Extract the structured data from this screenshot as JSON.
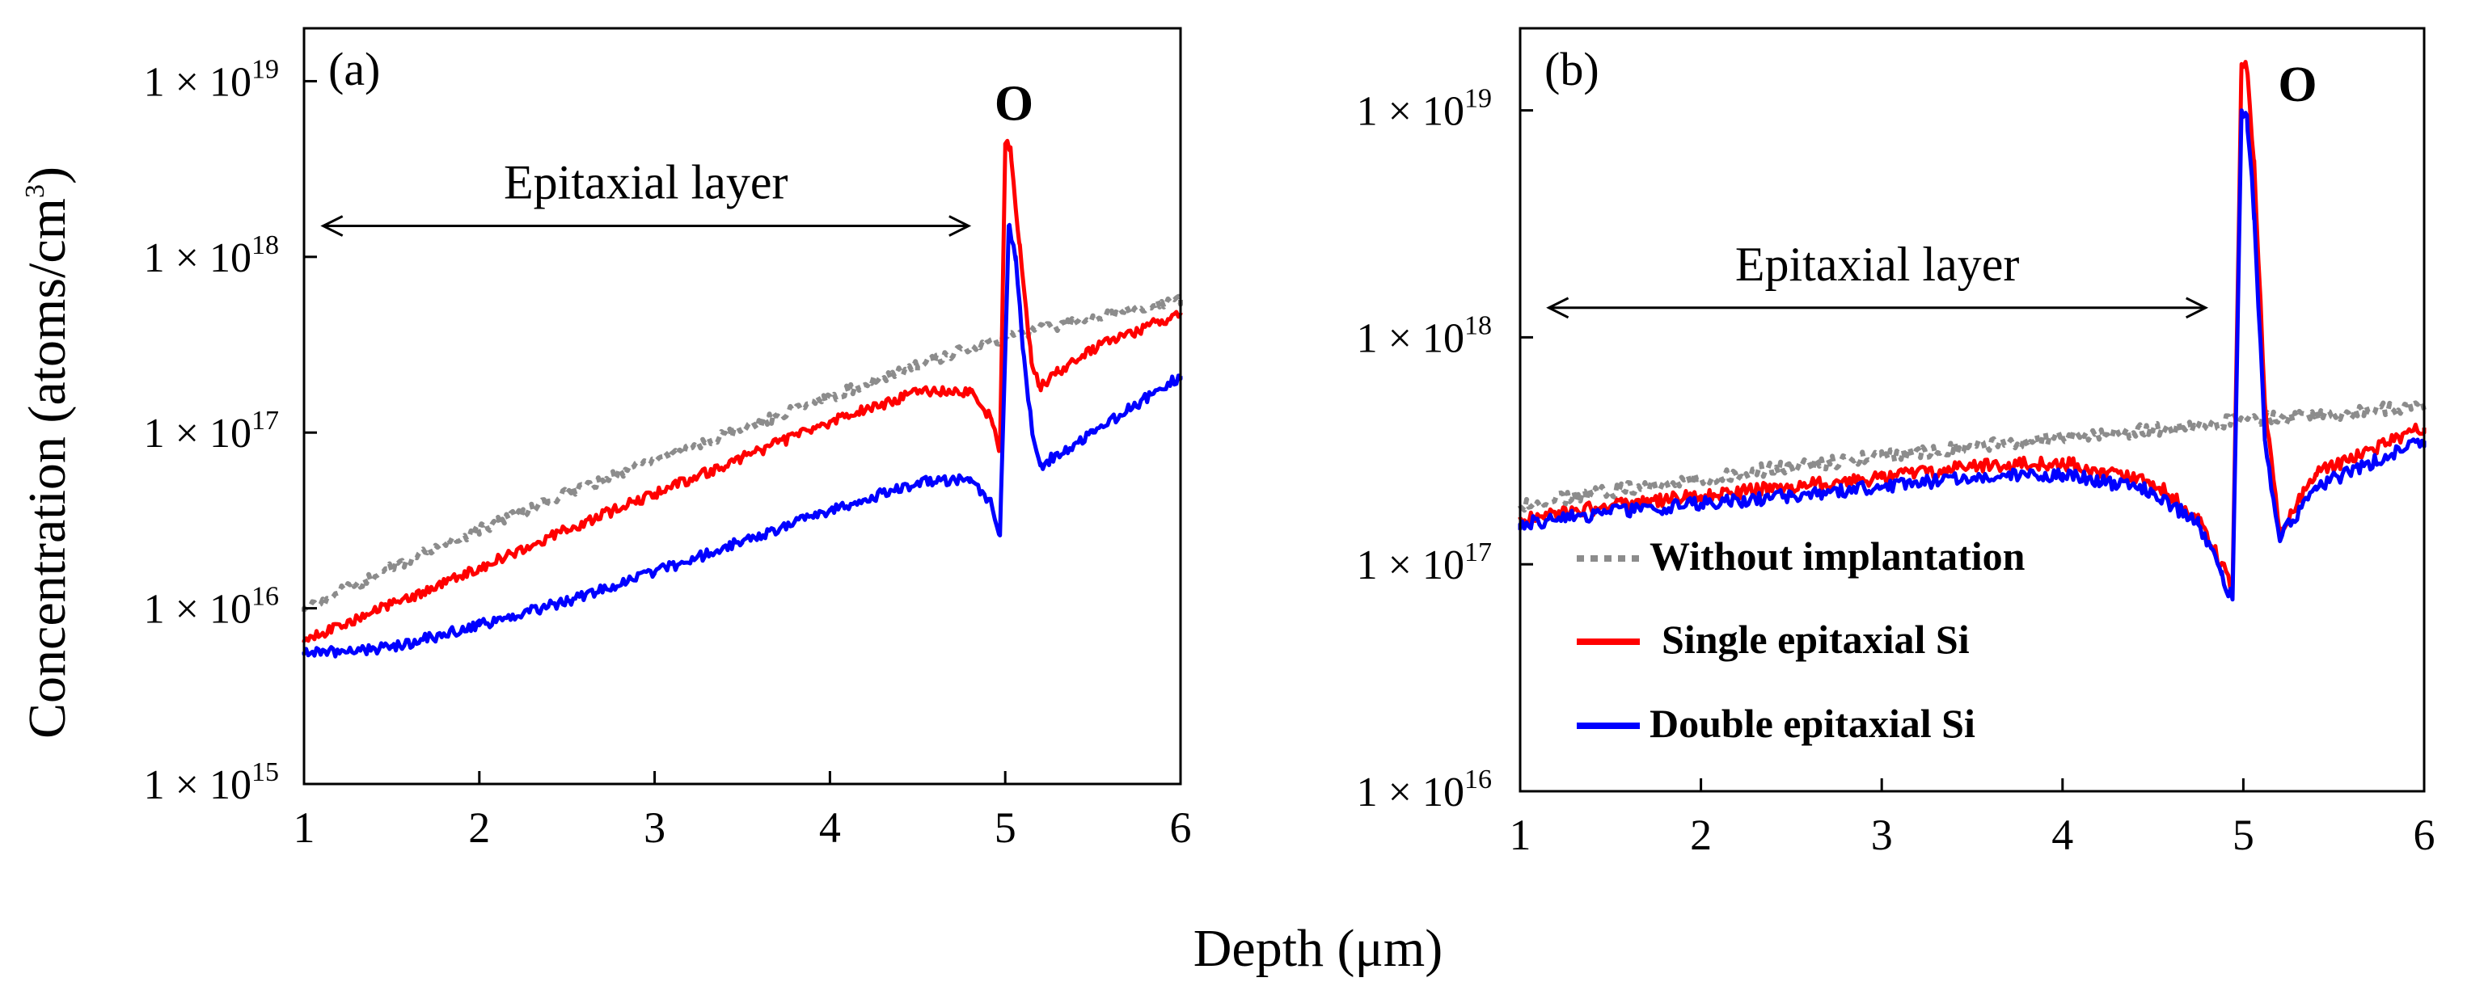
{
  "figure": {
    "ylabel": "Concentration (atoms/cm",
    "ylabel_sup": "3",
    "ylabel_end": ")",
    "xlabel": "Depth (μm)"
  },
  "legend": {
    "entries": [
      {
        "label": "Without implantation",
        "color": "#8c8c8c",
        "style": "dotted"
      },
      {
        "label": "Single epitaxial Si",
        "color": "#ff0000",
        "style": "solid"
      },
      {
        "label": "Double epitaxial Si",
        "color": "#0000ff",
        "style": "solid"
      }
    ]
  },
  "chart_data": [
    {
      "type": "line",
      "panel_label": "(a)",
      "title": "",
      "xlabel": "Depth (μm)",
      "ylabel": "Concentration (atoms/cm3)",
      "xlim": [
        1,
        6
      ],
      "ylim": [
        1000000000000000.0,
        2e+19
      ],
      "yscale": "log",
      "xticks": [
        "1",
        "2",
        "3",
        "4",
        "5",
        "6"
      ],
      "yticks": [
        {
          "value": 1000000000000000.0,
          "base": "1 × 10",
          "exp": "15"
        },
        {
          "value": 1e+16,
          "base": "1 × 10",
          "exp": "16"
        },
        {
          "value": 1e+17,
          "base": "1 × 10",
          "exp": "17"
        },
        {
          "value": 1e+18,
          "base": "1 × 10",
          "exp": "18"
        },
        {
          "value": 1e+19,
          "base": "1 × 10",
          "exp": "19"
        }
      ],
      "annotations": {
        "layer_text": "Epitaxial layer",
        "layer_span": [
          1.1,
          4.8
        ],
        "layer_arrow_y": 1.5e+18,
        "peak_text": "O",
        "peak_x": 5.05,
        "peak_y": 6e+18
      },
      "series": [
        {
          "name": "Without implantation",
          "color": "#8c8c8c",
          "dash": true,
          "x": [
            1,
            1.5,
            2,
            2.5,
            3,
            3.5,
            4,
            4.5,
            5,
            5.5,
            6
          ],
          "y": [
            1e+16,
            1.7e+16,
            2.8e+16,
            4.5e+16,
            7e+16,
            1.05e+17,
            1.6e+17,
            2.4e+17,
            3.5e+17,
            4.5e+17,
            5.7e+17
          ]
        },
        {
          "name": "Single epitaxial Si",
          "color": "#ff0000",
          "dash": false,
          "x": [
            1,
            1.5,
            2,
            2.5,
            3,
            3.5,
            4,
            4.5,
            4.8,
            4.92,
            4.97,
            5.0,
            5.03,
            5.08,
            5.15,
            5.2,
            5.3,
            5.5,
            6
          ],
          "y": [
            6500000000000000.0,
            1.05e+16,
            1.7e+16,
            2.8e+16,
            4.5e+16,
            7.2e+16,
            1.15e+17,
            1.7e+17,
            1.7e+17,
            1.2e+17,
            8e+16,
            4.4e+18,
            4.2e+18,
            1.2e+18,
            2.5e+17,
            1.8e+17,
            2.2e+17,
            3e+17,
            4.8e+17
          ]
        },
        {
          "name": "Double epitaxial Si",
          "color": "#0000ff",
          "dash": false,
          "x": [
            1,
            1.5,
            2,
            2.5,
            3,
            3.5,
            4,
            4.5,
            4.8,
            4.92,
            4.97,
            5.02,
            5.06,
            5.1,
            5.15,
            5.2,
            5.3,
            5.5,
            6
          ],
          "y": [
            5500000000000000.0,
            6000000000000000.0,
            8000000000000000.0,
            1.1e+16,
            1.6e+16,
            2.4e+16,
            3.6e+16,
            5.2e+16,
            5.5e+16,
            4e+16,
            2.6e+16,
            1.5e+18,
            1e+18,
            3e+17,
            1.1e+17,
            6.5e+16,
            7.5e+16,
            1e+17,
            2.1e+17
          ]
        }
      ]
    },
    {
      "type": "line",
      "panel_label": "(b)",
      "title": "",
      "xlabel": "Depth (μm)",
      "ylabel": "",
      "xlim": [
        1,
        6
      ],
      "ylim": [
        1e+16,
        2.3e+19
      ],
      "yscale": "log",
      "xticks": [
        "1",
        "2",
        "3",
        "4",
        "5",
        "6"
      ],
      "yticks": [
        {
          "value": 1e+16,
          "base": "1 × 10",
          "exp": "16"
        },
        {
          "value": 1e+17,
          "base": "1 × 10",
          "exp": "17"
        },
        {
          "value": 1e+18,
          "base": "1 × 10",
          "exp": "18"
        },
        {
          "value": 1e+19,
          "base": "1 × 10",
          "exp": "19"
        }
      ],
      "annotations": {
        "layer_text": "Epitaxial layer",
        "layer_span": [
          1.15,
          4.8
        ],
        "layer_arrow_y": 1.35e+18,
        "peak_text": "O",
        "peak_x": 5.3,
        "peak_y": 1.1e+19
      },
      "series": [
        {
          "name": "Without implantation",
          "color": "#8c8c8c",
          "dash": true,
          "x": [
            1,
            1.5,
            2,
            2.5,
            3,
            3.5,
            4,
            4.5,
            5,
            5.5,
            6
          ],
          "y": [
            1.8e+17,
            2.1e+17,
            2.4e+17,
            2.7e+17,
            3e+17,
            3.3e+17,
            3.6e+17,
            3.9e+17,
            4.3e+17,
            4.6e+17,
            5e+17
          ]
        },
        {
          "name": "Single epitaxial Si",
          "color": "#ff0000",
          "dash": false,
          "x": [
            1,
            1.5,
            2,
            2.5,
            3,
            3.5,
            4,
            4.5,
            4.75,
            4.88,
            4.94,
            4.99,
            5.02,
            5.06,
            5.12,
            5.2,
            5.4,
            6
          ],
          "y": [
            1.6e+17,
            1.8e+17,
            2e+17,
            2.2e+17,
            2.4e+17,
            2.7e+17,
            2.8e+17,
            2.3e+17,
            1.6e+17,
            1e+17,
            7.5e+16,
            1.6e+19,
            1.5e+19,
            6e+18,
            5e+17,
            1.4e+17,
            2.5e+17,
            4e+17
          ]
        },
        {
          "name": "Double epitaxial Si",
          "color": "#0000ff",
          "dash": false,
          "x": [
            1,
            1.5,
            2,
            2.5,
            3,
            3.5,
            4,
            4.5,
            4.75,
            4.88,
            4.94,
            4.99,
            5.02,
            5.06,
            5.12,
            5.2,
            5.4,
            6
          ],
          "y": [
            1.5e+17,
            1.7e+17,
            1.85e+17,
            2e+17,
            2.2e+17,
            2.4e+17,
            2.5e+17,
            2.1e+17,
            1.5e+17,
            9e+16,
            7e+16,
            1e+19,
            9.5e+18,
            3.5e+18,
            3.5e+17,
            1.3e+17,
            2.2e+17,
            3.5e+17
          ]
        }
      ]
    }
  ]
}
